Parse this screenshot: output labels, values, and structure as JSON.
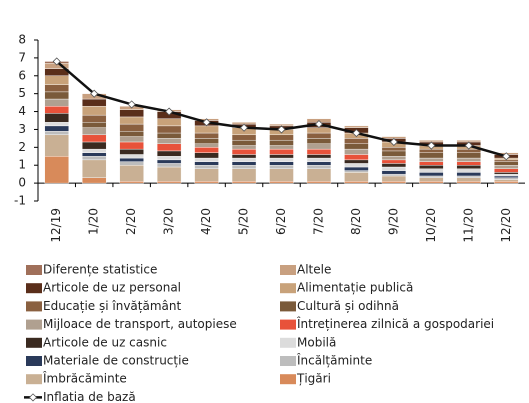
{
  "chart_data": {
    "type": "bar",
    "categories": [
      "12/19",
      "1/20",
      "2/20",
      "3/20",
      "4/20",
      "5/20",
      "6/20",
      "7/20",
      "8/20",
      "9/20",
      "10/20",
      "11/20",
      "12/20"
    ],
    "ylim": [
      -1,
      8
    ],
    "yticks": [
      -1,
      0,
      1,
      2,
      3,
      4,
      5,
      6,
      7,
      8
    ],
    "series": [
      {
        "name": "Diferențe statistice",
        "color": "#a0705a",
        "values": [
          0.1,
          0,
          0,
          0,
          0,
          0,
          0,
          0,
          0,
          0,
          0,
          0,
          0
        ]
      },
      {
        "name": "Altele",
        "color": "#c8a080",
        "values": [
          0.3,
          0.3,
          0.2,
          0.1,
          0.1,
          0.1,
          0.1,
          0.2,
          0.1,
          0.1,
          0.1,
          0.1,
          0.1
        ]
      },
      {
        "name": "Articole de uz personal",
        "color": "#5a2e1a",
        "values": [
          0.4,
          0.4,
          0.4,
          0.4,
          0.3,
          0.2,
          0.2,
          0.3,
          0.3,
          0.2,
          0.2,
          0.2,
          0.2
        ]
      },
      {
        "name": "Alimentație publică",
        "color": "#c8a27a",
        "values": [
          0.5,
          0.5,
          0.4,
          0.4,
          0.4,
          0.4,
          0.3,
          0.3,
          0.3,
          0.3,
          0.2,
          0.2,
          0.1
        ]
      },
      {
        "name": "Educație și învățământ",
        "color": "#8a6040",
        "values": [
          0.4,
          0.4,
          0.4,
          0.4,
          0.3,
          0.3,
          0.3,
          0.3,
          0.3,
          0.2,
          0.2,
          0.2,
          0.1
        ]
      },
      {
        "name": "Cultură și odihnă",
        "color": "#7a5a3a",
        "values": [
          0.4,
          0.3,
          0.3,
          0.3,
          0.3,
          0.3,
          0.3,
          0.3,
          0.3,
          0.3,
          0.3,
          0.3,
          0.2
        ]
      },
      {
        "name": "Mijloace de transport, autopiese",
        "color": "#b0a090",
        "values": [
          0.4,
          0.4,
          0.3,
          0.3,
          0.2,
          0.2,
          0.2,
          0.3,
          0.3,
          0.2,
          0.2,
          0.2,
          0.2
        ]
      },
      {
        "name": "Întreținerea zilnică a gospodariei",
        "color": "#e8523a",
        "values": [
          0.4,
          0.4,
          0.4,
          0.4,
          0.3,
          0.3,
          0.3,
          0.3,
          0.3,
          0.2,
          0.2,
          0.2,
          0.2
        ]
      },
      {
        "name": "Articole de uz casnic",
        "color": "#3a2a20",
        "values": [
          0.5,
          0.4,
          0.3,
          0.3,
          0.3,
          0.2,
          0.2,
          0.2,
          0.2,
          0.2,
          0.2,
          0.2,
          0.1
        ]
      },
      {
        "name": "Mobilă",
        "color": "#dcdcdc",
        "values": [
          0.2,
          0.2,
          0.2,
          0.2,
          0.2,
          0.2,
          0.2,
          0.2,
          0.2,
          0.2,
          0.2,
          0.2,
          0.1
        ]
      },
      {
        "name": "Materiale de construcție",
        "color": "#2a3a5a",
        "values": [
          0.3,
          0.2,
          0.2,
          0.2,
          0.2,
          0.2,
          0.2,
          0.2,
          0.2,
          0.2,
          0.2,
          0.2,
          0.1
        ]
      },
      {
        "name": "Încălțăminte",
        "color": "#bdbdbd",
        "values": [
          0.2,
          0.2,
          0.2,
          0.2,
          0.2,
          0.2,
          0.2,
          0.2,
          0.1,
          0.1,
          0.1,
          0.1,
          0.1
        ]
      },
      {
        "name": "Îmbrăcăminte",
        "color": "#c9b094",
        "values": [
          1.2,
          1.0,
          0.9,
          0.8,
          0.7,
          0.7,
          0.7,
          0.7,
          0.5,
          0.3,
          0.2,
          0.2,
          0.1
        ]
      },
      {
        "name": "Țigări",
        "color": "#d88a5a",
        "values": [
          1.5,
          0.3,
          0.1,
          0.1,
          0.1,
          0.1,
          0.1,
          0.1,
          0.1,
          0.1,
          0.1,
          0.1,
          0.1
        ]
      },
      {
        "name": "Inflatia de bază",
        "type": "line",
        "color": "#111111",
        "values": [
          6.8,
          5.0,
          4.4,
          4.0,
          3.4,
          3.1,
          3.0,
          3.3,
          2.8,
          2.3,
          2.1,
          2.1,
          1.5
        ]
      }
    ]
  }
}
